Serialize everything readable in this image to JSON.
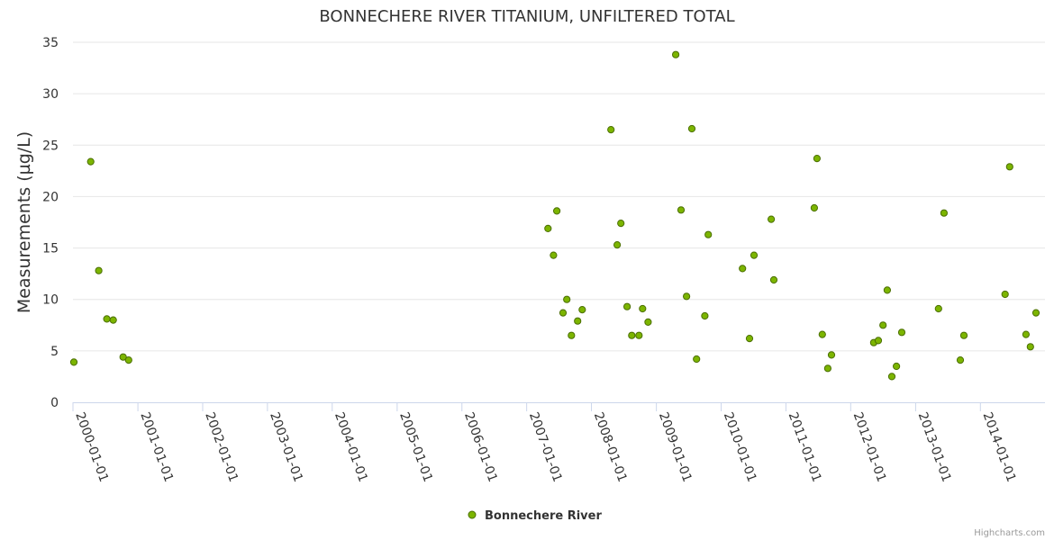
{
  "chart_data": {
    "type": "scatter",
    "title": "BONNECHERE RIVER TITANIUM, UNFILTERED TOTAL",
    "xlabel": "",
    "ylabel": "Measurements (µg/L)",
    "ylim": [
      0,
      35
    ],
    "yticks": [
      0,
      5,
      10,
      15,
      20,
      25,
      30,
      35
    ],
    "xlim": [
      "2000-01-01",
      "2014-12-31"
    ],
    "xtick_labels": [
      "2000-01-01",
      "2001-01-01",
      "2002-01-01",
      "2003-01-01",
      "2004-01-01",
      "2005-01-01",
      "2006-01-01",
      "2007-01-01",
      "2008-01-01",
      "2009-01-01",
      "2010-01-01",
      "2011-01-01",
      "2012-01-01",
      "2013-01-01",
      "2014-01-01"
    ],
    "grid": true,
    "legend_position": "bottom-center",
    "series": [
      {
        "name": "Bonnechere River",
        "color": "#7cb500",
        "points": [
          {
            "x": "2000-01-06",
            "y": 3.9
          },
          {
            "x": "2000-04-10",
            "y": 23.4
          },
          {
            "x": "2000-05-25",
            "y": 12.8
          },
          {
            "x": "2000-07-10",
            "y": 8.1
          },
          {
            "x": "2000-08-15",
            "y": 8.0
          },
          {
            "x": "2000-10-10",
            "y": 4.4
          },
          {
            "x": "2000-11-10",
            "y": 4.1
          },
          {
            "x": "2007-05-01",
            "y": 16.9
          },
          {
            "x": "2007-06-01",
            "y": 14.3
          },
          {
            "x": "2007-06-20",
            "y": 18.6
          },
          {
            "x": "2007-07-25",
            "y": 8.7
          },
          {
            "x": "2007-08-15",
            "y": 10.0
          },
          {
            "x": "2007-09-10",
            "y": 6.5
          },
          {
            "x": "2007-10-15",
            "y": 7.9
          },
          {
            "x": "2007-11-10",
            "y": 9.0
          },
          {
            "x": "2008-04-20",
            "y": 26.5
          },
          {
            "x": "2008-05-25",
            "y": 15.3
          },
          {
            "x": "2008-06-15",
            "y": 17.4
          },
          {
            "x": "2008-07-20",
            "y": 9.3
          },
          {
            "x": "2008-08-15",
            "y": 6.5
          },
          {
            "x": "2008-09-25",
            "y": 6.5
          },
          {
            "x": "2008-10-15",
            "y": 9.1
          },
          {
            "x": "2008-11-15",
            "y": 7.8
          },
          {
            "x": "2009-04-20",
            "y": 33.8
          },
          {
            "x": "2009-05-20",
            "y": 18.7
          },
          {
            "x": "2009-06-20",
            "y": 10.3
          },
          {
            "x": "2009-07-20",
            "y": 26.6
          },
          {
            "x": "2009-08-15",
            "y": 4.2
          },
          {
            "x": "2009-10-01",
            "y": 8.4
          },
          {
            "x": "2009-10-20",
            "y": 16.3
          },
          {
            "x": "2010-05-01",
            "y": 13.0
          },
          {
            "x": "2010-06-10",
            "y": 6.2
          },
          {
            "x": "2010-07-05",
            "y": 14.3
          },
          {
            "x": "2010-10-10",
            "y": 17.8
          },
          {
            "x": "2010-10-25",
            "y": 11.9
          },
          {
            "x": "2011-06-10",
            "y": 18.9
          },
          {
            "x": "2011-06-25",
            "y": 23.7
          },
          {
            "x": "2011-07-25",
            "y": 6.6
          },
          {
            "x": "2011-08-25",
            "y": 3.3
          },
          {
            "x": "2011-09-15",
            "y": 4.6
          },
          {
            "x": "2012-05-10",
            "y": 5.8
          },
          {
            "x": "2012-06-05",
            "y": 6.0
          },
          {
            "x": "2012-07-01",
            "y": 7.5
          },
          {
            "x": "2012-07-25",
            "y": 10.9
          },
          {
            "x": "2012-08-20",
            "y": 2.5
          },
          {
            "x": "2012-09-15",
            "y": 3.5
          },
          {
            "x": "2012-10-15",
            "y": 6.8
          },
          {
            "x": "2013-05-10",
            "y": 9.1
          },
          {
            "x": "2013-06-10",
            "y": 18.4
          },
          {
            "x": "2013-09-10",
            "y": 4.1
          },
          {
            "x": "2013-09-30",
            "y": 6.5
          },
          {
            "x": "2014-05-20",
            "y": 10.5
          },
          {
            "x": "2014-06-15",
            "y": 22.9
          },
          {
            "x": "2014-09-15",
            "y": 6.6
          },
          {
            "x": "2014-10-10",
            "y": 5.4
          },
          {
            "x": "2014-11-10",
            "y": 8.7
          }
        ]
      }
    ]
  },
  "credits": "Highcharts.com"
}
